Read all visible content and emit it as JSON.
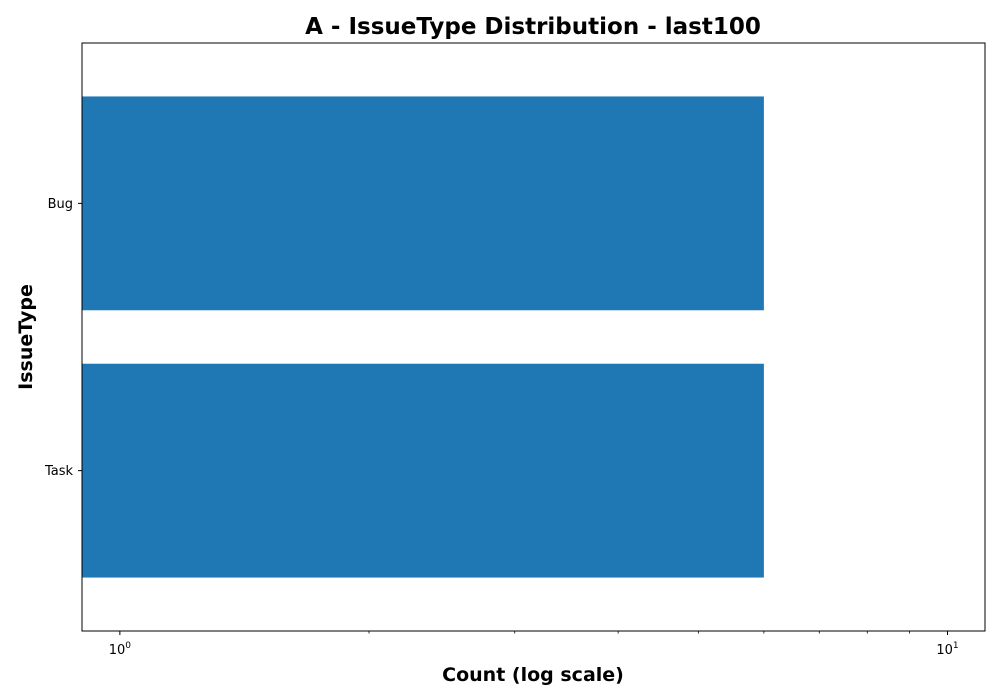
{
  "chart_data": {
    "type": "bar",
    "orientation": "horizontal",
    "title": "A - IssueType Distribution - last100",
    "xlabel": "Count (log scale)",
    "ylabel": "IssueType",
    "x_scale": "log",
    "xlim": [
      0.9,
      11.1
    ],
    "categories": [
      "Bug",
      "Task"
    ],
    "values": [
      6,
      6
    ],
    "x_major_ticks": [
      {
        "value": 1,
        "label_base": "10",
        "label_exp": "0"
      },
      {
        "value": 10,
        "label_base": "10",
        "label_exp": "1"
      }
    ],
    "x_minor_ticks": [
      2,
      3,
      4,
      5,
      6,
      7,
      8,
      9
    ],
    "bar_color": "#1f77b4",
    "grid": false,
    "legend": false
  }
}
